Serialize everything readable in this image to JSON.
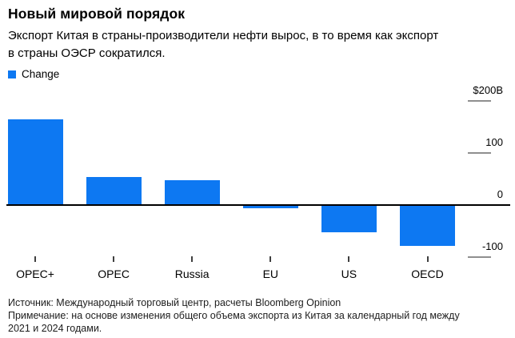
{
  "header": {
    "title": "Новый мировой порядок",
    "subtitle_lines": [
      "Экспорт Китая в страны-производители нефти вырос, в то время как экспорт",
      "в страны ОЭСР сократился."
    ]
  },
  "legend": {
    "label": "Change"
  },
  "colors": {
    "bar": "#0d78f2",
    "zero_axis": "#000000",
    "tick_dash": "#8f8f8f",
    "category_tick": "#3f3f3f"
  },
  "chart_data": {
    "type": "bar",
    "title": "Новый мировой порядок",
    "series_name": "Change",
    "unit": "USD billions",
    "categories": [
      "OPEC+",
      "OPEC",
      "Russia",
      "EU",
      "US",
      "OECD"
    ],
    "values": [
      165,
      54,
      47,
      -6,
      -53,
      -78
    ],
    "y_ticks": [
      {
        "value": 200,
        "label": "$200B"
      },
      {
        "value": 100,
        "label": "100"
      },
      {
        "value": 0,
        "label": "0"
      },
      {
        "value": -100,
        "label": "-100"
      }
    ],
    "ylim": [
      -130,
      215
    ],
    "grid": "none",
    "axis_side": "right",
    "legend_position": "top-left"
  },
  "footer": {
    "source": "Источник: Международный торговый центр, расчеты Bloomberg Opinion",
    "note_lines": [
      "Примечание: на основе изменения общего объема экспорта из Китая за календарный год между",
      "2021 и 2024 годами."
    ]
  }
}
